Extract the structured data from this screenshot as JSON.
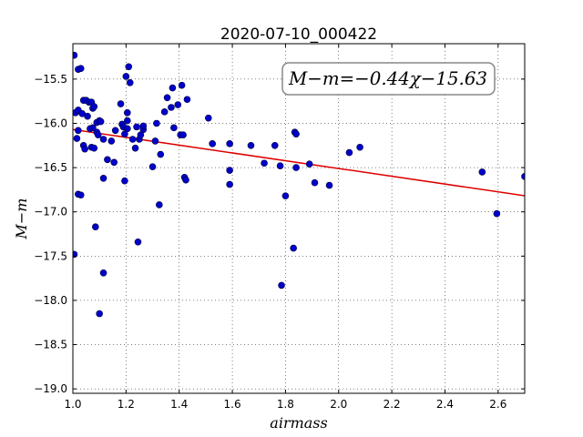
{
  "chart_data": {
    "type": "scatter",
    "title": "2020-07-10_000422",
    "xlabel": "airmass",
    "ylabel": "M−m",
    "annotation": "M−m=−0.44χ−15.63",
    "xlim": [
      1.0,
      2.7
    ],
    "ylim": [
      -19.05,
      -15.1
    ],
    "y_inverted": false,
    "grid": true,
    "x_ticks": [
      "1.0",
      "1.2",
      "1.4",
      "1.6",
      "1.8",
      "2.0",
      "2.2",
      "2.4",
      "2.6"
    ],
    "x_tick_values": [
      1.0,
      1.2,
      1.4,
      1.6,
      1.8,
      2.0,
      2.2,
      2.4,
      2.6
    ],
    "y_ticks": [
      "−15.5",
      "−16.0",
      "−16.5",
      "−17.0",
      "−17.5",
      "−18.0",
      "−18.5",
      "−19.0"
    ],
    "y_tick_values": [
      -15.5,
      -16.0,
      -16.5,
      -17.0,
      -17.5,
      -18.0,
      -18.5,
      -19.0
    ],
    "fit_line": {
      "slope": -0.44,
      "intercept": -15.63,
      "color": "#dd0000"
    },
    "point_color": "#0000cc",
    "points": [
      [
        1.005,
        -15.23
      ],
      [
        1.005,
        -17.48
      ],
      [
        1.01,
        -15.88
      ],
      [
        1.015,
        -16.17
      ],
      [
        1.02,
        -15.85
      ],
      [
        1.02,
        -16.08
      ],
      [
        1.02,
        -16.8
      ],
      [
        1.02,
        -15.39
      ],
      [
        1.03,
        -15.38
      ],
      [
        1.03,
        -16.81
      ],
      [
        1.035,
        -15.89
      ],
      [
        1.04,
        -16.25
      ],
      [
        1.04,
        -15.74
      ],
      [
        1.045,
        -16.29
      ],
      [
        1.05,
        -15.74
      ],
      [
        1.055,
        -15.92
      ],
      [
        1.06,
        -15.76
      ],
      [
        1.065,
        -16.06
      ],
      [
        1.07,
        -16.27
      ],
      [
        1.07,
        -15.76
      ],
      [
        1.075,
        -15.83
      ],
      [
        1.075,
        -16.05
      ],
      [
        1.08,
        -15.81
      ],
      [
        1.08,
        -16.28
      ],
      [
        1.085,
        -17.17
      ],
      [
        1.09,
        -15.99
      ],
      [
        1.09,
        -16.1
      ],
      [
        1.095,
        -16.13
      ],
      [
        1.1,
        -15.97
      ],
      [
        1.1,
        -18.15
      ],
      [
        1.105,
        -15.98
      ],
      [
        1.115,
        -16.18
      ],
      [
        1.115,
        -16.62
      ],
      [
        1.115,
        -17.69
      ],
      [
        1.13,
        -16.41
      ],
      [
        1.145,
        -16.2
      ],
      [
        1.155,
        -16.44
      ],
      [
        1.16,
        -16.08
      ],
      [
        1.18,
        -15.78
      ],
      [
        1.185,
        -16.01
      ],
      [
        1.19,
        -16.04
      ],
      [
        1.195,
        -16.12
      ],
      [
        1.195,
        -16.65
      ],
      [
        1.2,
        -15.47
      ],
      [
        1.205,
        -15.88
      ],
      [
        1.205,
        -15.97
      ],
      [
        1.205,
        -16.06
      ],
      [
        1.21,
        -15.36
      ],
      [
        1.215,
        -15.54
      ],
      [
        1.225,
        -16.18
      ],
      [
        1.235,
        -16.28
      ],
      [
        1.24,
        -16.04
      ],
      [
        1.245,
        -17.34
      ],
      [
        1.25,
        -16.18
      ],
      [
        1.255,
        -16.13
      ],
      [
        1.265,
        -16.07
      ],
      [
        1.265,
        -16.03
      ],
      [
        1.3,
        -16.49
      ],
      [
        1.31,
        -16.2
      ],
      [
        1.315,
        -16.0
      ],
      [
        1.325,
        -16.92
      ],
      [
        1.33,
        -16.35
      ],
      [
        1.345,
        -15.87
      ],
      [
        1.355,
        -15.71
      ],
      [
        1.37,
        -15.82
      ],
      [
        1.375,
        -15.6
      ],
      [
        1.38,
        -16.05
      ],
      [
        1.395,
        -15.79
      ],
      [
        1.405,
        -16.13
      ],
      [
        1.41,
        -15.57
      ],
      [
        1.415,
        -16.13
      ],
      [
        1.42,
        -16.61
      ],
      [
        1.425,
        -16.64
      ],
      [
        1.43,
        -15.73
      ],
      [
        1.51,
        -15.94
      ],
      [
        1.525,
        -16.23
      ],
      [
        1.59,
        -16.23
      ],
      [
        1.59,
        -16.53
      ],
      [
        1.59,
        -16.69
      ],
      [
        1.67,
        -16.25
      ],
      [
        1.72,
        -16.45
      ],
      [
        1.76,
        -16.25
      ],
      [
        1.78,
        -16.48
      ],
      [
        1.785,
        -17.83
      ],
      [
        1.8,
        -16.82
      ],
      [
        1.83,
        -17.41
      ],
      [
        1.835,
        -16.1
      ],
      [
        1.84,
        -16.12
      ],
      [
        1.84,
        -16.5
      ],
      [
        1.89,
        -16.46
      ],
      [
        1.91,
        -16.67
      ],
      [
        1.965,
        -16.7
      ],
      [
        2.04,
        -16.33
      ],
      [
        2.08,
        -16.27
      ],
      [
        2.54,
        -16.55
      ],
      [
        2.595,
        -17.02
      ],
      [
        2.7,
        -16.6
      ]
    ]
  }
}
